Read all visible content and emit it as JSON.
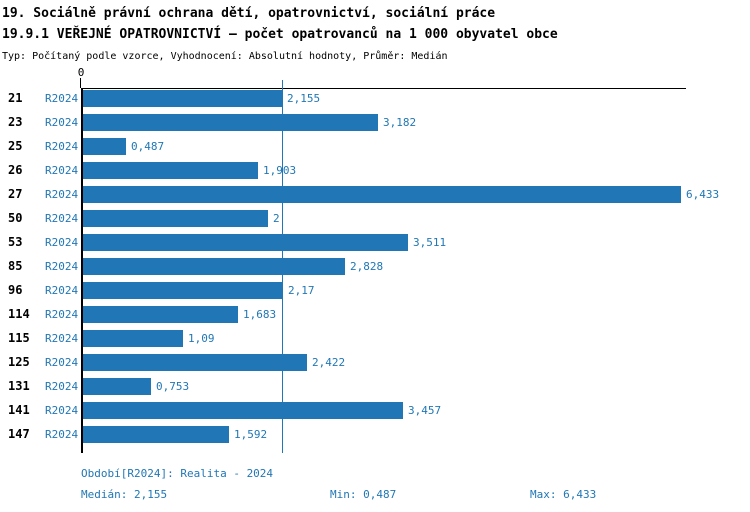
{
  "header": {
    "title_line1": "19. Sociálně právní ochrana dětí, opatrovnictví, sociální práce",
    "title_line2": "19.9.1 VEŘEJNÉ OPATROVNICTVÍ – počet opatrovanců na 1 000 obyvatel obce",
    "subtitle": "Typ: Počítaný podle vzorce, Vyhodnocení: Absolutní hodnoty, Průměr: Medián"
  },
  "colors": {
    "bar": "#2177b5",
    "accent_text": "#2177b5",
    "axis": "#000000"
  },
  "chart_data": {
    "type": "bar",
    "orientation": "horizontal",
    "title": "19.9.1 VEŘEJNÉ OPATROVNICTVÍ – počet opatrovanců na 1 000 obyvatel obce",
    "series_label": "R2024",
    "categories": [
      "21",
      "23",
      "25",
      "26",
      "27",
      "50",
      "53",
      "85",
      "96",
      "114",
      "115",
      "125",
      "131",
      "141",
      "147"
    ],
    "values": [
      2.155,
      3.182,
      0.487,
      1.903,
      6.433,
      2,
      3.511,
      2.828,
      2.17,
      1.683,
      1.09,
      2.422,
      0.753,
      3.457,
      1.592
    ],
    "value_labels": [
      "2,155",
      "3,182",
      "0,487",
      "1,903",
      "6,433",
      "2",
      "3,511",
      "2,828",
      "2,17",
      "1,683",
      "1,09",
      "2,422",
      "0,753",
      "3,457",
      "1,592"
    ],
    "x_axis": {
      "zero_label": "0",
      "xlim": [
        0,
        6.487
      ],
      "median_value": 2.155
    },
    "stats": {
      "median": 2.155,
      "min": 0.487,
      "max": 6.433
    },
    "grid": false,
    "legend_position": "none"
  },
  "footer": {
    "period": "Období[R2024]: Realita - 2024",
    "median": "Medián: 2,155",
    "min": "Min: 0,487",
    "max": "Max: 6,433"
  }
}
